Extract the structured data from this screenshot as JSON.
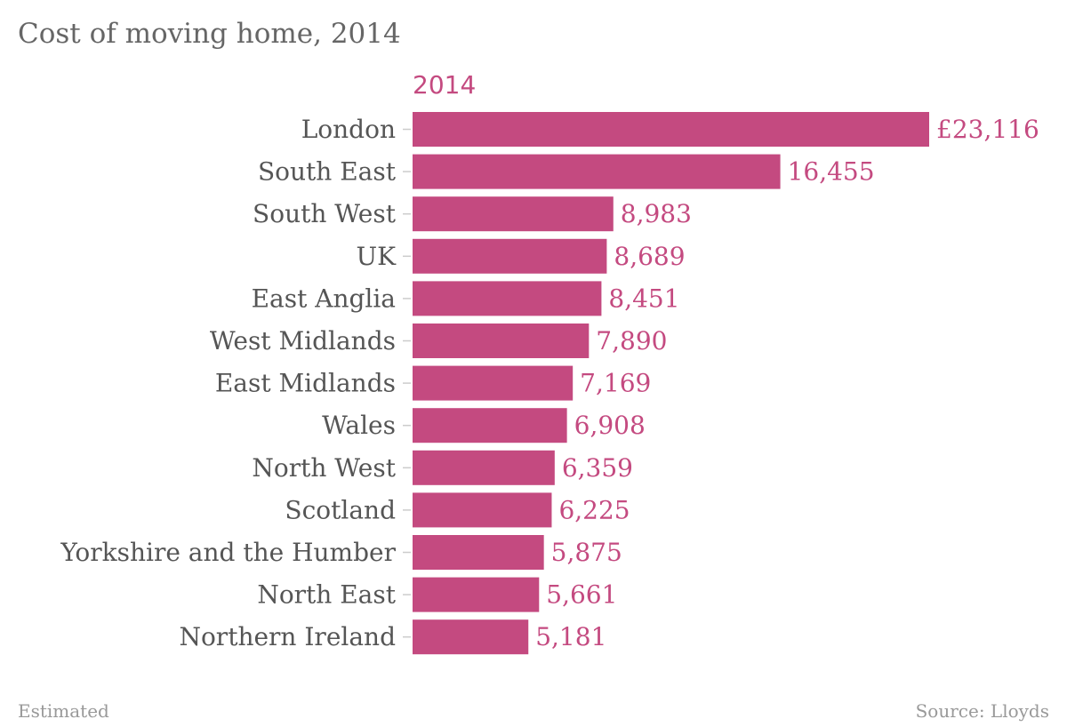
{
  "title": "Cost of moving home, 2014",
  "footer": {
    "note": "Estimated",
    "source": "Source: Lloyds"
  },
  "colors": {
    "bar": "#c44a80",
    "value_text": "#c44a80",
    "category_text": "#555555",
    "title_text": "#666666",
    "footer_text": "#999999",
    "tick": "#cccccc"
  },
  "chart_data": {
    "type": "bar",
    "orientation": "horizontal",
    "categories": [
      "London",
      "South East",
      "South West",
      "UK",
      "East Anglia",
      "West Midlands",
      "East Midlands",
      "Wales",
      "North West",
      "Scotland",
      "Yorkshire and the Humber",
      "North East",
      "Northern Ireland"
    ],
    "series": [
      {
        "name": "2014",
        "values": [
          23116,
          16455,
          8983,
          8689,
          8451,
          7890,
          7169,
          6908,
          6359,
          6225,
          5875,
          5661,
          5181
        ],
        "labels": [
          "£23,116",
          "16,455",
          "8,983",
          "8,689",
          "8,451",
          "7,890",
          "7,169",
          "6,908",
          "6,359",
          "6,225",
          "5,875",
          "5,661",
          "5,181"
        ]
      }
    ],
    "title": "Cost of moving home, 2014",
    "xlim": [
      0,
      23116
    ],
    "grid": false,
    "legend": "top-left"
  }
}
